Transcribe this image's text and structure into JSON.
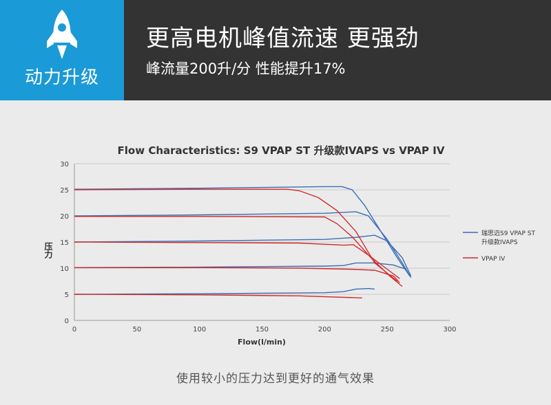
{
  "header": {
    "badge_label": "动力升级",
    "badge_icon": "rocket-icon",
    "headline": "更高电机峰值流速 更强劲",
    "subline": "峰流量200升/分 性能提升17%"
  },
  "colors": {
    "header_bg": "#333333",
    "badge_bg": "#1a9ad6",
    "series_s9": "#3a6db5",
    "series_ivap": "#d42a2a"
  },
  "chart_data": {
    "type": "line",
    "title": "Flow Characteristics: S9 VPAP ST 升级款IVAPS vs VPAP IV",
    "xlabel": "Flow(l/min)",
    "ylabel": "压力",
    "xlim": [
      0,
      300
    ],
    "ylim": [
      0,
      30
    ],
    "xticks": [
      0,
      50,
      100,
      150,
      200,
      250,
      300
    ],
    "yticks": [
      0,
      5,
      10,
      15,
      20,
      25,
      30
    ],
    "grid": "horizontal",
    "legend_position": "right",
    "series": [
      {
        "name": "瑞思迈S9 VPAP ST 升级款IVAPS",
        "color": "#3a6db5",
        "curves": [
          [
            [
              0,
              25.1
            ],
            [
              100,
              25.3
            ],
            [
              200,
              25.6
            ],
            [
              214,
              25.6
            ],
            [
              222,
              25
            ],
            [
              232,
              22
            ],
            [
              245,
              17
            ],
            [
              258,
              12
            ],
            [
              268,
              8.5
            ]
          ],
          [
            [
              0,
              20
            ],
            [
              100,
              20.2
            ],
            [
              200,
              20.5
            ],
            [
              225,
              20.8
            ],
            [
              235,
              20
            ],
            [
              250,
              15.5
            ],
            [
              262,
              11
            ],
            [
              269,
              8.2
            ]
          ],
          [
            [
              0,
              15
            ],
            [
              100,
              15.2
            ],
            [
              200,
              15.5
            ],
            [
              225,
              15.9
            ],
            [
              240,
              16.3
            ],
            [
              250,
              15.2
            ],
            [
              262,
              12
            ],
            [
              269,
              8.5
            ]
          ],
          [
            [
              0,
              10.1
            ],
            [
              100,
              10.2
            ],
            [
              200,
              10.4
            ],
            [
              215,
              10.5
            ],
            [
              225,
              11
            ],
            [
              240,
              11
            ],
            [
              255,
              10.6
            ],
            [
              265,
              9.8
            ]
          ],
          [
            [
              0,
              5
            ],
            [
              100,
              5.1
            ],
            [
              200,
              5.3
            ],
            [
              215,
              5.5
            ],
            [
              225,
              6
            ],
            [
              235,
              6.1
            ],
            [
              240,
              6
            ]
          ]
        ]
      },
      {
        "name": "VPAP IV",
        "color": "#d42a2a",
        "curves": [
          [
            [
              0,
              25
            ],
            [
              100,
              25.1
            ],
            [
              170,
              25.1
            ],
            [
              180,
              24.8
            ],
            [
              195,
              23.5
            ],
            [
              210,
              21
            ],
            [
              225,
              17
            ],
            [
              240,
              11
            ],
            [
              258,
              7.5
            ]
          ],
          [
            [
              0,
              19.9
            ],
            [
              100,
              19.9
            ],
            [
              200,
              19.8
            ],
            [
              210,
              18.5
            ],
            [
              222,
              16
            ],
            [
              237,
              12
            ],
            [
              252,
              8.5
            ],
            [
              262,
              6.5
            ]
          ],
          [
            [
              0,
              15
            ],
            [
              100,
              14.9
            ],
            [
              180,
              14.8
            ],
            [
              215,
              14.4
            ],
            [
              223,
              14.5
            ],
            [
              235,
              12.5
            ],
            [
              250,
              9.8
            ],
            [
              260,
              8
            ]
          ],
          [
            [
              0,
              10.1
            ],
            [
              100,
              10.1
            ],
            [
              180,
              10
            ],
            [
              220,
              9.8
            ],
            [
              240,
              9.6
            ],
            [
              255,
              8.5
            ],
            [
              260,
              7.2
            ]
          ],
          [
            [
              0,
              5
            ],
            [
              100,
              4.9
            ],
            [
              180,
              4.7
            ],
            [
              230,
              4.3
            ]
          ]
        ]
      }
    ]
  },
  "footer": {
    "caption": "使用较小的压力达到更好的通气效果"
  }
}
